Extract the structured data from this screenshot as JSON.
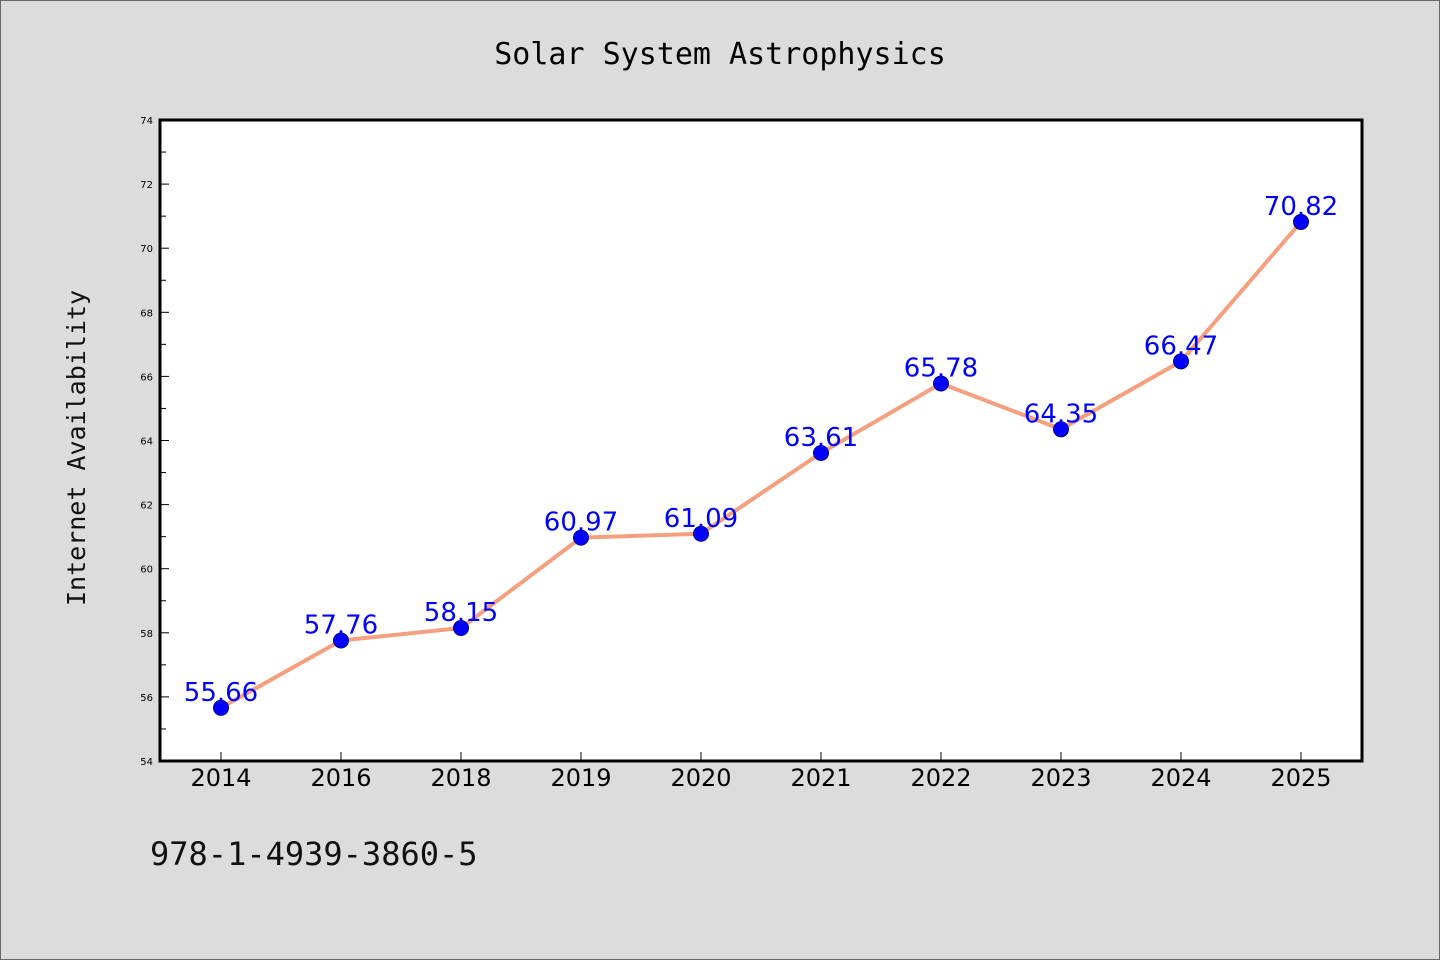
{
  "chart_data": {
    "type": "line",
    "title": "Solar System Astrophysics",
    "xlabel": "",
    "ylabel": "Internet Availability",
    "categories": [
      "2014",
      "2016",
      "2018",
      "2019",
      "2020",
      "2021",
      "2022",
      "2023",
      "2024",
      "2025"
    ],
    "series": [
      {
        "values": [
          55.66,
          57.76,
          58.15,
          60.97,
          61.09,
          63.61,
          65.78,
          64.35,
          66.47,
          70.82
        ],
        "labels": [
          "55.66",
          "57.76",
          "58.15",
          "60.97",
          "61.09",
          "63.61",
          "65.78",
          "64.35",
          "66.47",
          "70.82"
        ]
      }
    ],
    "ylim": [
      54,
      74
    ],
    "yticks": [
      "54",
      "56",
      "58",
      "60",
      "62",
      "64",
      "66",
      "68",
      "70",
      "72",
      "74"
    ],
    "grid": false,
    "legend": "none",
    "colors": {
      "line": "#f4a07e",
      "marker": "#0000ff",
      "data_label": "#0000ff",
      "background": "#dcdcdc",
      "plot_background": "#ffffff"
    }
  },
  "footer": {
    "identifier": "978-1-4939-3860-5"
  }
}
